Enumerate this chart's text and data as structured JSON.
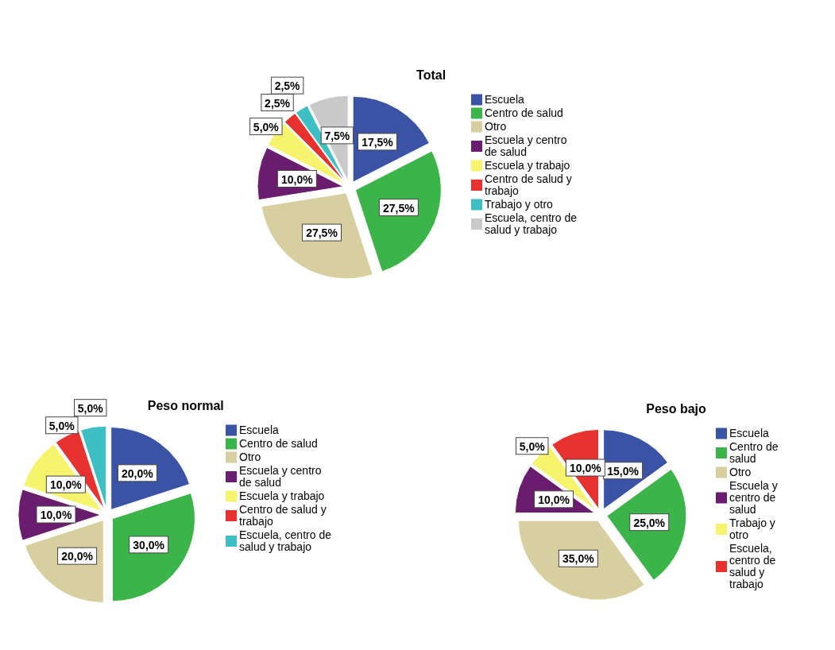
{
  "chart_data": [
    {
      "type": "pie",
      "title": "Total",
      "categories": [
        "Escuela",
        "Centro de salud",
        "Otro",
        "Escuela y centro de salud",
        "Escuela y trabajo",
        "Centro de salud y trabajo",
        "Trabajo y otro",
        "Escuela, centro de salud y trabajo"
      ],
      "values": [
        17.5,
        27.5,
        27.5,
        10.0,
        5.0,
        2.5,
        2.5,
        7.5
      ],
      "value_labels": [
        "17,5%",
        "27,5%",
        "27,5%",
        "10,0%",
        "5,0%",
        "2,5%",
        "2,5%",
        "7,5%"
      ],
      "colors": [
        "#3a53a4",
        "#3bb54a",
        "#d7cfa0",
        "#6a1d6e",
        "#f6f46c",
        "#e73230",
        "#3dbfc3",
        "#c9c9c9"
      ],
      "legend": "right"
    },
    {
      "type": "pie",
      "title": "Peso normal",
      "categories": [
        "Escuela",
        "Centro de salud",
        "Otro",
        "Escuela y centro de salud",
        "Escuela y trabajo",
        "Centro de salud y trabajo",
        "Escuela, centro de salud y trabajo"
      ],
      "values": [
        20.0,
        30.0,
        20.0,
        10.0,
        10.0,
        5.0,
        5.0
      ],
      "value_labels": [
        "20,0%",
        "30,0%",
        "20,0%",
        "10,0%",
        "10,0%",
        "5,0%",
        "5,0%"
      ],
      "colors": [
        "#3a53a4",
        "#3bb54a",
        "#d7cfa0",
        "#6a1d6e",
        "#f6f46c",
        "#e73230",
        "#3dbfc3"
      ],
      "legend": "right"
    },
    {
      "type": "pie",
      "title": "Peso bajo",
      "categories": [
        "Escuela",
        "Centro de salud",
        "Otro",
        "Escuela y centro de salud",
        "Trabajo y otro",
        "Escuela, centro de salud y trabajo"
      ],
      "values": [
        15.0,
        25.0,
        35.0,
        10.0,
        5.0,
        10.0
      ],
      "value_labels": [
        "15,0%",
        "25,0%",
        "35,0%",
        "10,0%",
        "5,0%",
        "10,0%"
      ],
      "colors": [
        "#3a53a4",
        "#3bb54a",
        "#d7cfa0",
        "#6a1d6e",
        "#f6f46c",
        "#e73230"
      ],
      "legend": "right"
    }
  ]
}
